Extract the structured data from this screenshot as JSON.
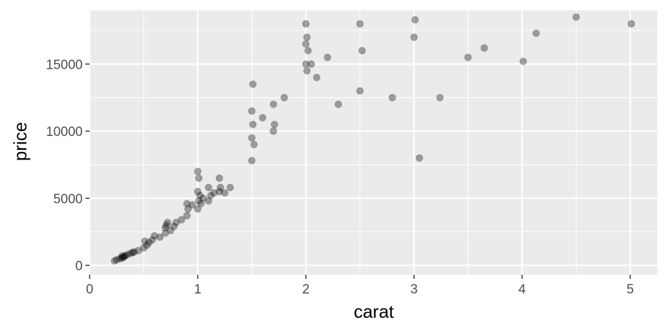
{
  "chart_data": {
    "type": "scatter",
    "xlabel": "carat",
    "ylabel": "price",
    "xlim": [
      0,
      5.25
    ],
    "ylim": [
      -700,
      19000
    ],
    "x_ticks": [
      0,
      1,
      2,
      3,
      4,
      5
    ],
    "x_tick_labels": [
      "0",
      "1",
      "2",
      "3",
      "4",
      "5"
    ],
    "y_ticks": [
      0,
      5000,
      10000,
      15000
    ],
    "y_tick_labels": [
      "0",
      "5000",
      "10000",
      "15000"
    ],
    "grid": true,
    "legend": "none",
    "point_color": "#000000",
    "point_alpha": 0.05,
    "panel_background": "#ebebeb",
    "grid_color": "#ffffff",
    "series": [
      {
        "x": [
          0.23,
          0.25,
          0.28,
          0.3,
          0.3,
          0.31,
          0.32,
          0.33,
          0.35,
          0.38,
          0.4,
          0.41,
          0.45,
          0.5,
          0.51,
          0.53,
          0.55,
          0.58,
          0.6,
          0.65,
          0.7,
          0.7,
          0.71,
          0.72,
          0.75,
          0.78,
          0.8,
          0.85,
          0.9,
          0.9,
          0.91,
          0.95,
          1.0,
          1.0,
          1.0,
          1.01,
          1.01,
          1.02,
          1.03,
          1.05,
          1.1,
          1.1,
          1.12,
          1.15,
          1.2,
          1.2,
          1.21,
          1.25,
          1.3,
          1.5,
          1.5,
          1.5,
          1.51,
          1.51,
          1.52,
          1.6,
          1.7,
          1.7,
          1.71,
          1.8,
          2.0,
          2.0,
          2.0,
          2.01,
          2.01,
          2.02,
          2.05,
          2.1,
          2.2,
          2.3,
          2.5,
          2.5,
          2.52,
          2.8,
          3.0,
          3.01,
          3.05,
          3.24,
          3.5,
          3.65,
          4.01,
          4.13,
          4.5,
          5.01
        ],
        "y": [
          330,
          420,
          500,
          540,
          700,
          600,
          650,
          720,
          800,
          900,
          950,
          1000,
          1100,
          1300,
          1800,
          1500,
          1700,
          1900,
          2200,
          2100,
          2400,
          2800,
          3000,
          3200,
          2600,
          2900,
          3200,
          3400,
          3700,
          4600,
          4200,
          4500,
          4200,
          5500,
          7000,
          4800,
          6500,
          5200,
          4600,
          5000,
          4800,
          5800,
          5200,
          5400,
          5500,
          6500,
          5800,
          5400,
          5800,
          7800,
          9500,
          11500,
          13500,
          10500,
          9000,
          11000,
          10000,
          12000,
          10500,
          12500,
          15000,
          16500,
          18000,
          14500,
          17000,
          16000,
          15000,
          14000,
          15500,
          12000,
          13000,
          18000,
          16000,
          12500,
          17000,
          18300,
          8000,
          12500,
          15500,
          16200,
          15200,
          17300,
          18500,
          18000
        ]
      }
    ]
  }
}
